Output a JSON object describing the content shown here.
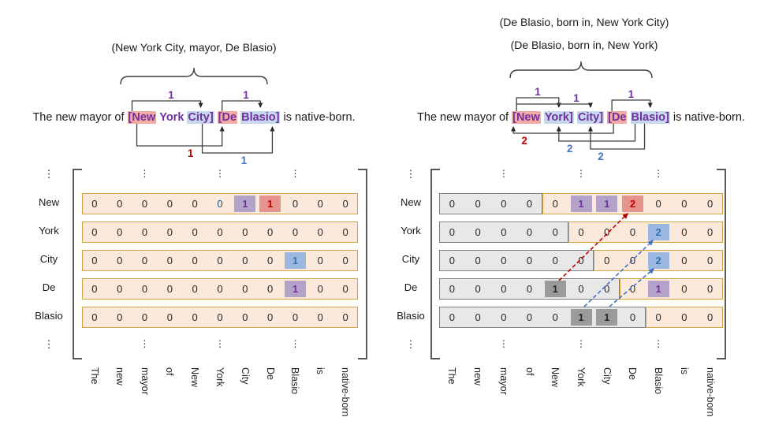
{
  "colors": {
    "text": "#1a1a1a",
    "purple": "#7030a0",
    "red": "#c00000",
    "blue": "#2e74b5",
    "navy": "#1f4e79",
    "dashed_blue": "#4472c4",
    "pink_bg": "#f2aaa3",
    "red_bg": "#e5938c",
    "purple_bg": "#b3a3c9",
    "blue_bg": "#9db8e0",
    "blue_bg_light": "#c7d7ee",
    "peach_bg": "#fbe9dc",
    "gold_border": "#d3a340",
    "gray_bg": "#e9e8e8",
    "gray_dark_bg": "#9b9b9b",
    "gray_border": "#808080",
    "line": "#3f3f3f"
  },
  "panels": [
    {
      "triples": [
        "(New York City, mayor, De Blasio)"
      ],
      "sentence_tokens": [
        {
          "t": "The new mayor of",
          "kind": "plain"
        },
        {
          "t": "[New",
          "kind": "entity",
          "bg": "pink_bg"
        },
        {
          "t": "York",
          "kind": "entity"
        },
        {
          "t": "City]",
          "kind": "entity",
          "bg": "blue_bg_light"
        },
        {
          "t": "[De",
          "kind": "entity",
          "bg": "pink_bg"
        },
        {
          "t": "Blasio]",
          "kind": "entity",
          "bg": "blue_bg_light"
        },
        {
          "t": "is native-born.",
          "kind": "plain"
        }
      ],
      "arrow_labels": {
        "above": [
          {
            "t": "1",
            "color": "purple"
          },
          {
            "t": "1",
            "color": "purple"
          }
        ],
        "below": [
          {
            "t": "1",
            "color": "red"
          },
          {
            "t": "1",
            "color": "dashed_blue"
          }
        ]
      },
      "matrix": {
        "row_labels": [
          "⋮",
          "New",
          "York",
          "City",
          "De",
          "Blasio",
          "⋮"
        ],
        "col_labels": [
          "The",
          "new",
          "mayor",
          "of",
          "New",
          "York",
          "City",
          "De",
          "Blasio",
          "is",
          "native-born"
        ],
        "ellipsis_cols": [
          2,
          5,
          8
        ],
        "rows": [
          {
            "label": "New",
            "gray_until": 0,
            "cells": [
              "0",
              "0",
              "0",
              "0",
              "0",
              {
                "v": "0",
                "fg": "navy"
              },
              {
                "v": "1",
                "fg": "purple",
                "bg": "purple_bg"
              },
              {
                "v": "1",
                "fg": "red",
                "bg": "red_bg"
              },
              "0",
              "0",
              "0"
            ]
          },
          {
            "label": "York",
            "gray_until": 0,
            "cells": [
              "0",
              "0",
              "0",
              "0",
              "0",
              "0",
              "0",
              "0",
              "0",
              "0",
              "0"
            ]
          },
          {
            "label": "City",
            "gray_until": 0,
            "cells": [
              "0",
              "0",
              "0",
              "0",
              "0",
              "0",
              "0",
              "0",
              {
                "v": "1",
                "fg": "blue",
                "bg": "blue_bg"
              },
              "0",
              "0"
            ]
          },
          {
            "label": "De",
            "gray_until": 0,
            "cells": [
              "0",
              "0",
              "0",
              "0",
              "0",
              "0",
              "0",
              "0",
              {
                "v": "1",
                "fg": "purple",
                "bg": "purple_bg"
              },
              "0",
              "0"
            ]
          },
          {
            "label": "Blasio",
            "gray_until": 0,
            "cells": [
              "0",
              "0",
              "0",
              "0",
              "0",
              "0",
              "0",
              "0",
              "0",
              "0",
              "0"
            ]
          }
        ]
      }
    },
    {
      "triples": [
        "(De Blasio, born in, New York City)",
        "(De Blasio, born in, New York)"
      ],
      "sentence_tokens": [
        {
          "t": "The new mayor of",
          "kind": "plain"
        },
        {
          "t": "[New",
          "kind": "entity",
          "bg": "pink_bg"
        },
        {
          "t": "York]",
          "kind": "entity",
          "bg": "blue_bg_light"
        },
        {
          "t": "City]",
          "kind": "entity",
          "bg": "blue_bg_light"
        },
        {
          "t": "[De",
          "kind": "entity",
          "bg": "pink_bg"
        },
        {
          "t": "Blasio]",
          "kind": "entity",
          "bg": "blue_bg_light"
        },
        {
          "t": "is native-born.",
          "kind": "plain"
        }
      ],
      "arrow_labels": {
        "above": [
          {
            "t": "1",
            "color": "purple"
          },
          {
            "t": "1",
            "color": "purple"
          },
          {
            "t": "1",
            "color": "purple"
          }
        ],
        "below": [
          {
            "t": "2",
            "color": "red"
          },
          {
            "t": "2",
            "color": "dashed_blue"
          },
          {
            "t": "2",
            "color": "dashed_blue"
          }
        ]
      },
      "matrix": {
        "row_labels": [
          "⋮",
          "New",
          "York",
          "City",
          "De",
          "Blasio",
          "⋮"
        ],
        "col_labels": [
          "The",
          "new",
          "mayor",
          "of",
          "New",
          "York",
          "City",
          "De",
          "Blasio",
          "is",
          "native-born"
        ],
        "ellipsis_cols": [
          2,
          5,
          8
        ],
        "rows": [
          {
            "label": "New",
            "gray_until": 4,
            "cells": [
              "0",
              "0",
              "0",
              "0",
              "0",
              {
                "v": "1",
                "fg": "purple",
                "bg": "purple_bg"
              },
              {
                "v": "1",
                "fg": "purple",
                "bg": "purple_bg"
              },
              {
                "v": "2",
                "fg": "red",
                "bg": "red_bg"
              },
              "0",
              "0",
              "0"
            ]
          },
          {
            "label": "York",
            "gray_until": 5,
            "cells": [
              "0",
              "0",
              "0",
              "0",
              "0",
              "0",
              "0",
              "0",
              {
                "v": "2",
                "fg": "blue",
                "bg": "blue_bg"
              },
              "0",
              "0"
            ]
          },
          {
            "label": "City",
            "gray_until": 6,
            "cells": [
              "0",
              "0",
              "0",
              "0",
              "0",
              "0",
              "0",
              "0",
              {
                "v": "2",
                "fg": "blue",
                "bg": "blue_bg"
              },
              "0",
              "0"
            ]
          },
          {
            "label": "De",
            "gray_until": 7,
            "cells": [
              "0",
              "0",
              "0",
              "0",
              {
                "v": "1",
                "bg": "gray_dark_bg"
              },
              "0",
              "0",
              "0",
              {
                "v": "1",
                "fg": "purple",
                "bg": "purple_bg"
              },
              "0",
              "0"
            ]
          },
          {
            "label": "Blasio",
            "gray_until": 8,
            "cells": [
              "0",
              "0",
              "0",
              "0",
              "0",
              {
                "v": "1",
                "bg": "gray_dark_bg"
              },
              {
                "v": "1",
                "bg": "gray_dark_bg"
              },
              "0",
              "0",
              "0",
              "0"
            ]
          }
        ]
      }
    }
  ]
}
